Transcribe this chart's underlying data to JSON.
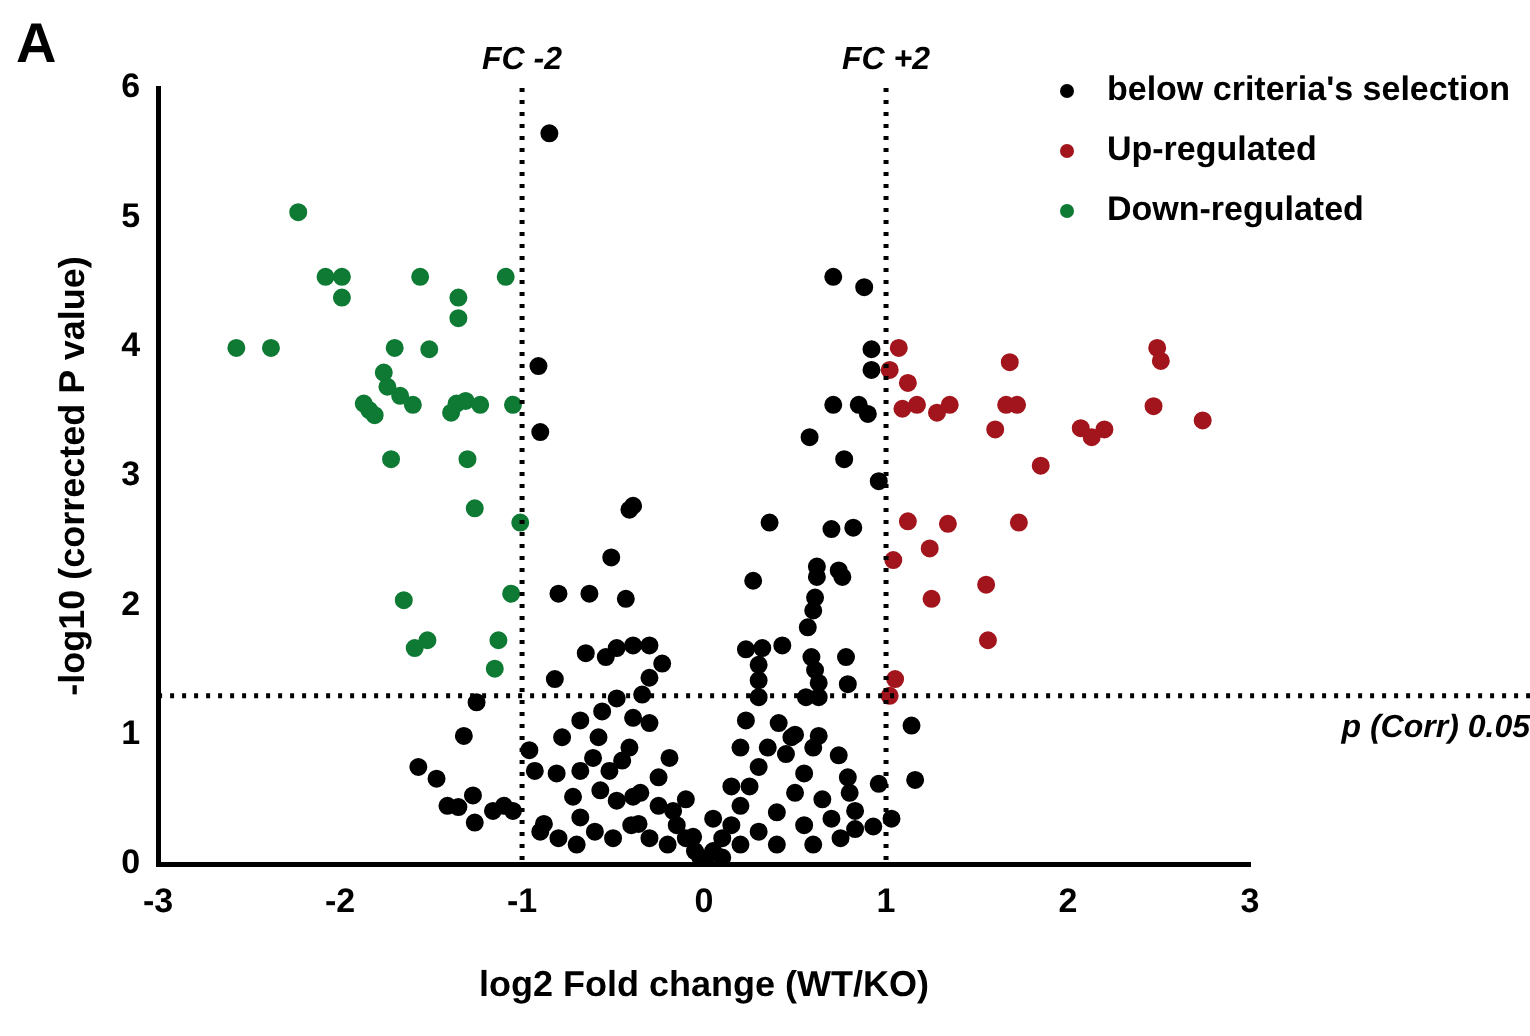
{
  "chart_data": {
    "type": "scatter",
    "xlabel": "log2 Fold change (WT/KO)",
    "ylabel": "-log10 (corrected P value)",
    "annotations": [
      "A"
    ],
    "xlim": [
      -3,
      3
    ],
    "xticks": [
      -3,
      -2,
      -1,
      0,
      1,
      2,
      3
    ],
    "ylim": [
      0,
      6
    ],
    "yticks": [
      0,
      1,
      2,
      3,
      4,
      5,
      6
    ],
    "grid": false,
    "legend": "top right",
    "marker": "circle",
    "ref_lines": [
      {
        "axis": "x",
        "value": -1,
        "label": "FC -2",
        "line_style": "dotted"
      },
      {
        "axis": "x",
        "value": 1,
        "label": "FC +2",
        "line_style": "dotted"
      },
      {
        "axis": "y",
        "value": 1.3,
        "label": "p (Corr) 0.05",
        "line_style": "dotted"
      }
    ],
    "series": [
      {
        "name": "below criteria's selection",
        "color": "#000000",
        "x": [
          0.71,
          0.88,
          0.92,
          0.92,
          0.71,
          0.85,
          0.9,
          0.58,
          0.77,
          0.96,
          0.36,
          0.7,
          0.82,
          0.27,
          0.62,
          0.62,
          0.74,
          0.76,
          0.61,
          0.6,
          0.57,
          0.23,
          0.32,
          0.43,
          0.59,
          0.78,
          0.3,
          0.61,
          0.3,
          0.63,
          0.79,
          0.3,
          0.56,
          0.63,
          1.14,
          1.16,
          0.96,
          1.03,
          0.93,
          0.83,
          0.23,
          0.41,
          0.48,
          0.63,
          0.74,
          0.79,
          0.83,
          -0.85,
          -0.91,
          -0.9,
          -0.39,
          -0.41,
          -0.51,
          -0.8,
          -0.63,
          -0.43,
          -0.65,
          -0.54,
          -0.48,
          -0.39,
          -0.3,
          -0.23,
          -0.3,
          -0.34,
          -0.82,
          -1.25,
          -1.32,
          -1.57,
          -1.47,
          -1.41,
          -1.35,
          -1.27,
          -1.26,
          -1.16,
          -1.1,
          -1.05,
          -0.96,
          -0.93,
          -0.81,
          -0.88,
          -0.78,
          -0.68,
          -0.58,
          -0.56,
          -0.48,
          -0.39,
          -0.41,
          -0.3,
          -0.68,
          -0.52,
          -0.61,
          -0.72,
          -0.57,
          -0.48,
          -0.39,
          -0.25,
          -0.19,
          -0.68,
          -0.36,
          -0.17,
          -0.06,
          0.01,
          0.05,
          0.1,
          0.15,
          0.2,
          0.25,
          0.3,
          0.35,
          0.1,
          0.2,
          0.3,
          0.4,
          0.5,
          0.55,
          0.45,
          0.6,
          0.65,
          0.7,
          0.55,
          0.4,
          0.6,
          0.75,
          0.8,
          0.5,
          0.2,
          0.15,
          0.05,
          -0.05,
          -0.1,
          -0.15,
          -0.2,
          -0.3,
          -0.25,
          -0.35,
          -0.4,
          -0.5,
          -0.6,
          -0.7,
          -0.8,
          -0.9,
          -0.45,
          -0.1,
          -0.02
        ],
        "values": [
          4.54,
          4.46,
          3.98,
          3.82,
          3.55,
          3.55,
          3.48,
          3.3,
          3.13,
          2.96,
          2.64,
          2.59,
          2.6,
          2.19,
          2.3,
          2.22,
          2.27,
          2.22,
          2.06,
          1.96,
          1.83,
          1.66,
          1.67,
          1.69,
          1.6,
          1.6,
          1.54,
          1.5,
          1.42,
          1.4,
          1.39,
          1.29,
          1.29,
          1.29,
          1.07,
          0.65,
          0.62,
          0.35,
          0.29,
          0.27,
          1.11,
          1.09,
          0.98,
          0.99,
          0.84,
          0.67,
          0.41,
          5.65,
          3.85,
          3.34,
          2.77,
          2.74,
          2.37,
          2.09,
          2.09,
          2.05,
          1.63,
          1.6,
          1.67,
          1.69,
          1.69,
          1.55,
          1.44,
          1.31,
          1.43,
          1.25,
          0.99,
          0.75,
          0.66,
          0.45,
          0.44,
          0.53,
          0.32,
          0.41,
          0.45,
          0.41,
          0.88,
          0.72,
          0.7,
          0.31,
          0.98,
          1.11,
          0.98,
          1.18,
          1.28,
          1.13,
          0.9,
          1.09,
          0.72,
          0.72,
          0.82,
          0.52,
          0.57,
          0.49,
          0.52,
          0.67,
          0.82,
          0.36,
          0.31,
          0.41,
          0.21,
          0.0,
          0.1,
          0.2,
          0.3,
          0.45,
          0.6,
          0.75,
          0.9,
          0.05,
          0.15,
          0.25,
          0.4,
          0.55,
          0.7,
          0.85,
          0.9,
          0.5,
          0.35,
          0.3,
          0.15,
          0.15,
          0.2,
          0.55,
          1.0,
          0.9,
          0.6,
          0.35,
          0.1,
          0.2,
          0.3,
          0.15,
          0.2,
          0.45,
          0.55,
          0.3,
          0.2,
          0.25,
          0.15,
          0.2,
          0.25,
          0.8,
          0.5,
          0.05
        ]
      },
      {
        "name": "Up-regulated",
        "color": "#a3151d",
        "x": [
          1.07,
          1.02,
          1.12,
          1.09,
          1.17,
          1.28,
          1.35,
          1.68,
          1.66,
          1.72,
          1.6,
          1.85,
          2.07,
          2.13,
          2.2,
          2.49,
          2.51,
          2.47,
          2.74,
          1.12,
          1.34,
          1.73,
          1.24,
          1.04,
          1.25,
          1.55,
          1.56,
          1.05,
          1.02
        ],
        "values": [
          3.99,
          3.82,
          3.72,
          3.52,
          3.55,
          3.49,
          3.55,
          3.88,
          3.55,
          3.55,
          3.36,
          3.08,
          3.37,
          3.3,
          3.36,
          3.99,
          3.89,
          3.54,
          3.43,
          2.65,
          2.63,
          2.64,
          2.44,
          2.35,
          2.05,
          2.16,
          1.73,
          1.43,
          1.3
        ]
      },
      {
        "name": "Down-regulated",
        "color": "#0e7a34",
        "x": [
          -2.23,
          -2.08,
          -1.99,
          -1.99,
          -1.56,
          -1.09,
          -1.35,
          -1.35,
          -2.57,
          -2.38,
          -1.7,
          -1.51,
          -1.76,
          -1.74,
          -1.67,
          -1.6,
          -1.87,
          -1.84,
          -1.81,
          -1.41,
          -1.39,
          -1.36,
          -1.31,
          -1.23,
          -1.05,
          -1.72,
          -1.3,
          -1.26,
          -1.01,
          -1.65,
          -1.06,
          -1.59,
          -1.52,
          -1.13,
          -1.15
        ],
        "values": [
          5.04,
          4.54,
          4.54,
          4.38,
          4.54,
          4.54,
          4.38,
          4.22,
          3.99,
          3.99,
          3.99,
          3.98,
          3.8,
          3.69,
          3.62,
          3.55,
          3.56,
          3.51,
          3.47,
          null,
          3.49,
          3.56,
          3.58,
          3.55,
          3.55,
          3.13,
          3.13,
          2.75,
          2.64,
          2.04,
          2.09,
          1.67,
          1.73,
          1.73,
          1.51
        ]
      }
    ]
  }
}
